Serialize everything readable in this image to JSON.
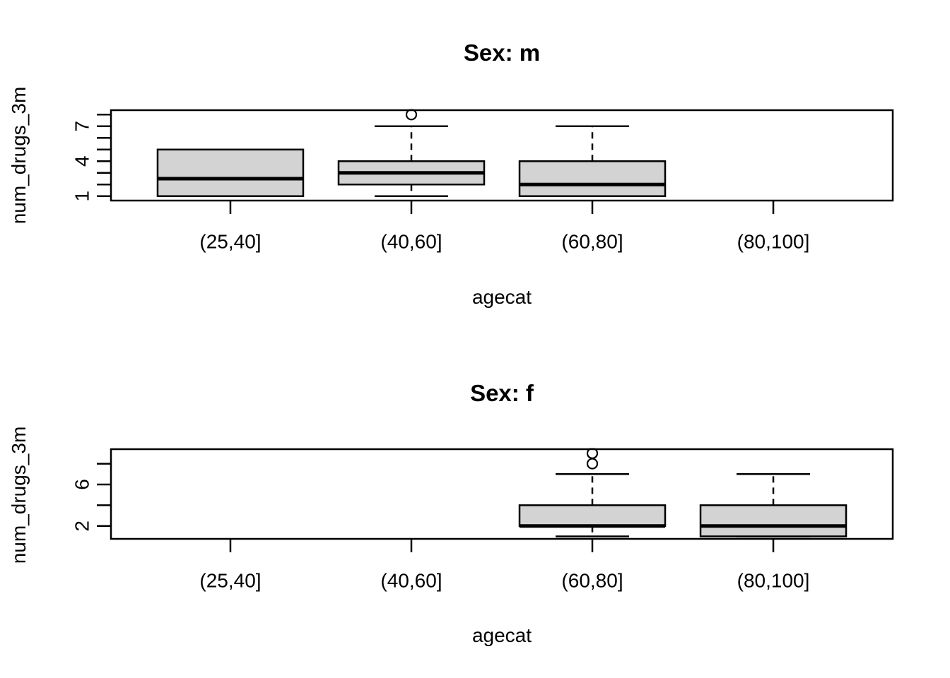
{
  "figure": {
    "background": "#ffffff",
    "line_color": "#000000",
    "box_fill": "#d3d3d3"
  },
  "chart_data": [
    {
      "type": "boxplot",
      "title": "Sex: m",
      "xlabel": "agecat",
      "ylabel": "num_drugs_3m",
      "categories": [
        "(25,40]",
        "(40,60]",
        "(60,80]",
        "(80,100]"
      ],
      "ylim": [
        0.62,
        8.38
      ],
      "grid": false,
      "yticks": [
        {
          "value": 1,
          "label": "1"
        },
        {
          "value": 2,
          "label": ""
        },
        {
          "value": 3,
          "label": ""
        },
        {
          "value": 4,
          "label": "4"
        },
        {
          "value": 5,
          "label": ""
        },
        {
          "value": 6,
          "label": ""
        },
        {
          "value": 7,
          "label": "7"
        },
        {
          "value": 8,
          "label": ""
        }
      ],
      "boxes": [
        {
          "category": "(25,40]",
          "empty": false,
          "min": 1,
          "q1": 1,
          "median": 2.5,
          "q3": 5,
          "max": 5,
          "outliers": []
        },
        {
          "category": "(40,60]",
          "empty": false,
          "min": 1,
          "q1": 2,
          "median": 3,
          "q3": 4,
          "max": 7,
          "outliers": [
            8
          ]
        },
        {
          "category": "(60,80]",
          "empty": false,
          "min": 1,
          "q1": 1,
          "median": 2,
          "q3": 4,
          "max": 7,
          "outliers": []
        },
        {
          "category": "(80,100]",
          "empty": true
        }
      ]
    },
    {
      "type": "boxplot",
      "title": "Sex: f",
      "xlabel": "agecat",
      "ylabel": "num_drugs_3m",
      "categories": [
        "(25,40]",
        "(40,60]",
        "(60,80]",
        "(80,100]"
      ],
      "ylim": [
        0.76,
        9.4
      ],
      "grid": false,
      "yticks": [
        {
          "value": 2,
          "label": "2"
        },
        {
          "value": 4,
          "label": ""
        },
        {
          "value": 6,
          "label": "6"
        },
        {
          "value": 8,
          "label": ""
        }
      ],
      "boxes": [
        {
          "category": "(25,40]",
          "empty": true
        },
        {
          "category": "(40,60]",
          "empty": true
        },
        {
          "category": "(60,80]",
          "empty": false,
          "min": 1,
          "q1": 2,
          "median": 2,
          "q3": 4,
          "max": 7,
          "outliers": [
            8,
            9
          ]
        },
        {
          "category": "(80,100]",
          "empty": false,
          "min": 1,
          "q1": 1,
          "median": 2,
          "q3": 4,
          "max": 7,
          "outliers": []
        }
      ]
    }
  ]
}
